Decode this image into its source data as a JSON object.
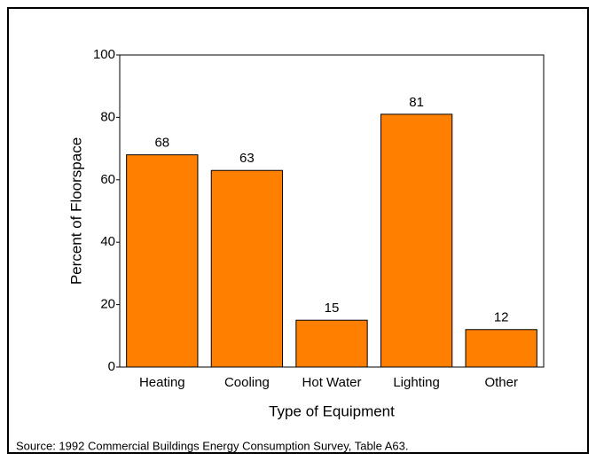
{
  "chart_data": {
    "type": "bar",
    "x_label": "Type of Equipment",
    "y_label": "Percent of Floorspace",
    "source": "Source:  1992 Commercial Buildings Energy Consumption Survey, Table A63.",
    "categories": [
      "Heating",
      "Cooling",
      "Hot Water",
      "Lighting",
      "Other"
    ],
    "values": [
      68,
      63,
      15,
      81,
      12
    ],
    "color": "#ff8000",
    "ylim": [
      0,
      100
    ],
    "yticks": [
      0,
      20,
      40,
      60,
      80,
      100
    ],
    "grid": false
  }
}
